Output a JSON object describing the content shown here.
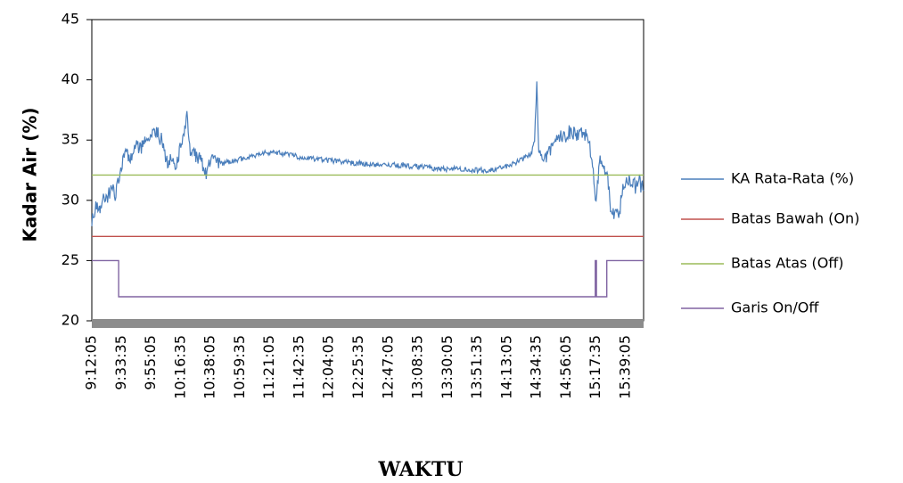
{
  "chart_data": {
    "type": "line",
    "title": "",
    "ylabel": "Kadar Air (%)",
    "xlabel": "WAKTU",
    "ylim": [
      20,
      45
    ],
    "yticks": [
      "20",
      "25",
      "30",
      "35",
      "40",
      "45"
    ],
    "x_tick_labels": [
      "9:12:05",
      "9:33:35",
      "9:55:05",
      "10:16:35",
      "10:38:05",
      "10:59:35",
      "11:21:05",
      "11:42:35",
      "12:04:05",
      "12:25:35",
      "12:47:05",
      "13:08:35",
      "13:30:05",
      "13:51:35",
      "14:13:05",
      "14:34:35",
      "14:56:05",
      "15:17:35",
      "15:39:05"
    ],
    "x_range_seconds": [
      "09:12:05",
      "15:52:00"
    ],
    "legend_position": "right",
    "series": [
      {
        "name": "KA Rata-Rata (%)",
        "color": "#4a7ebb",
        "points": [
          [
            "9:12:05",
            28.5
          ],
          [
            "9:15:00",
            29.5
          ],
          [
            "9:18:00",
            28.8
          ],
          [
            "9:20:00",
            30.5
          ],
          [
            "9:23:00",
            30.0
          ],
          [
            "9:26:00",
            31.0
          ],
          [
            "9:29:00",
            30.6
          ],
          [
            "9:31:00",
            31.5
          ],
          [
            "9:33:35",
            32.5
          ],
          [
            "9:36:00",
            34.3
          ],
          [
            "9:40:00",
            33.6
          ],
          [
            "9:44:00",
            34.8
          ],
          [
            "9:48:00",
            34.2
          ],
          [
            "9:52:00",
            35.5
          ],
          [
            "9:55:05",
            35.0
          ],
          [
            "9:58:00",
            35.8
          ],
          [
            "10:01:00",
            35.4
          ],
          [
            "10:04:00",
            34.5
          ],
          [
            "10:07:00",
            33.0
          ],
          [
            "10:10:00",
            33.8
          ],
          [
            "10:13:00",
            32.6
          ],
          [
            "10:16:35",
            34.5
          ],
          [
            "10:19:00",
            35.0
          ],
          [
            "10:21:00",
            37.8
          ],
          [
            "10:23:00",
            34.4
          ],
          [
            "10:26:00",
            33.8
          ],
          [
            "10:29:00",
            33.4
          ],
          [
            "10:32:00",
            33.2
          ],
          [
            "10:35:00",
            32.4
          ],
          [
            "10:38:05",
            33.2
          ],
          [
            "10:45:00",
            33.0
          ],
          [
            "10:52:00",
            33.2
          ],
          [
            "10:59:35",
            33.4
          ],
          [
            "11:06:00",
            33.6
          ],
          [
            "11:13:00",
            33.8
          ],
          [
            "11:21:05",
            34.0
          ],
          [
            "11:28:00",
            33.9
          ],
          [
            "11:35:00",
            33.8
          ],
          [
            "11:42:35",
            33.6
          ],
          [
            "11:50:00",
            33.5
          ],
          [
            "11:57:00",
            33.4
          ],
          [
            "12:04:05",
            33.3
          ],
          [
            "12:12:00",
            33.2
          ],
          [
            "12:20:00",
            33.1
          ],
          [
            "12:25:35",
            33.1
          ],
          [
            "12:33:00",
            33.0
          ],
          [
            "12:40:00",
            33.0
          ],
          [
            "12:47:05",
            33.0
          ],
          [
            "12:55:00",
            32.9
          ],
          [
            "13:02:00",
            32.8
          ],
          [
            "13:08:35",
            32.8
          ],
          [
            "13:16:00",
            32.7
          ],
          [
            "13:23:00",
            32.6
          ],
          [
            "13:30:05",
            32.6
          ],
          [
            "13:37:00",
            32.6
          ],
          [
            "13:44:00",
            32.5
          ],
          [
            "13:51:35",
            32.5
          ],
          [
            "13:58:00",
            32.5
          ],
          [
            "14:05:00",
            32.6
          ],
          [
            "14:13:05",
            32.8
          ],
          [
            "14:20:00",
            33.2
          ],
          [
            "14:27:00",
            33.6
          ],
          [
            "14:31:00",
            34.0
          ],
          [
            "14:33:00",
            35.0
          ],
          [
            "14:34:35",
            39.7
          ],
          [
            "14:36:00",
            34.2
          ],
          [
            "14:39:00",
            33.4
          ],
          [
            "14:42:00",
            33.8
          ],
          [
            "14:45:00",
            34.3
          ],
          [
            "14:49:00",
            34.8
          ],
          [
            "14:52:00",
            35.2
          ],
          [
            "14:56:05",
            35.5
          ],
          [
            "15:00:00",
            35.7
          ],
          [
            "15:04:00",
            35.4
          ],
          [
            "15:08:00",
            35.8
          ],
          [
            "15:12:00",
            35.2
          ],
          [
            "15:15:00",
            32.8
          ],
          [
            "15:17:35",
            30.0
          ],
          [
            "15:20:00",
            33.5
          ],
          [
            "15:23:00",
            32.8
          ],
          [
            "15:26:00",
            31.5
          ],
          [
            "15:28:00",
            29.5
          ],
          [
            "15:30:00",
            29.0
          ],
          [
            "15:32:00",
            28.8
          ],
          [
            "15:34:00",
            28.5
          ],
          [
            "15:36:00",
            30.5
          ],
          [
            "15:39:05",
            31.5
          ],
          [
            "15:42:00",
            31.7
          ],
          [
            "15:46:00",
            31.2
          ],
          [
            "15:49:00",
            31.5
          ],
          [
            "15:52:00",
            30.8
          ]
        ]
      },
      {
        "name": "Batas Bawah (On)",
        "color": "#c0504d",
        "constant": 27
      },
      {
        "name": "Batas Atas (Off)",
        "color": "#9bbb59",
        "constant": 32.1
      },
      {
        "name": "Garis On/Off",
        "color": "#8064a2",
        "points": [
          [
            "9:12:05",
            25
          ],
          [
            "9:31:30",
            25
          ],
          [
            "9:31:30",
            22
          ],
          [
            "15:17:00",
            22
          ],
          [
            "15:17:00",
            25
          ],
          [
            "15:17:50",
            25
          ],
          [
            "15:17:50",
            22
          ],
          [
            "15:25:20",
            22
          ],
          [
            "15:25:20",
            25
          ],
          [
            "15:52:00",
            25
          ]
        ]
      }
    ]
  }
}
